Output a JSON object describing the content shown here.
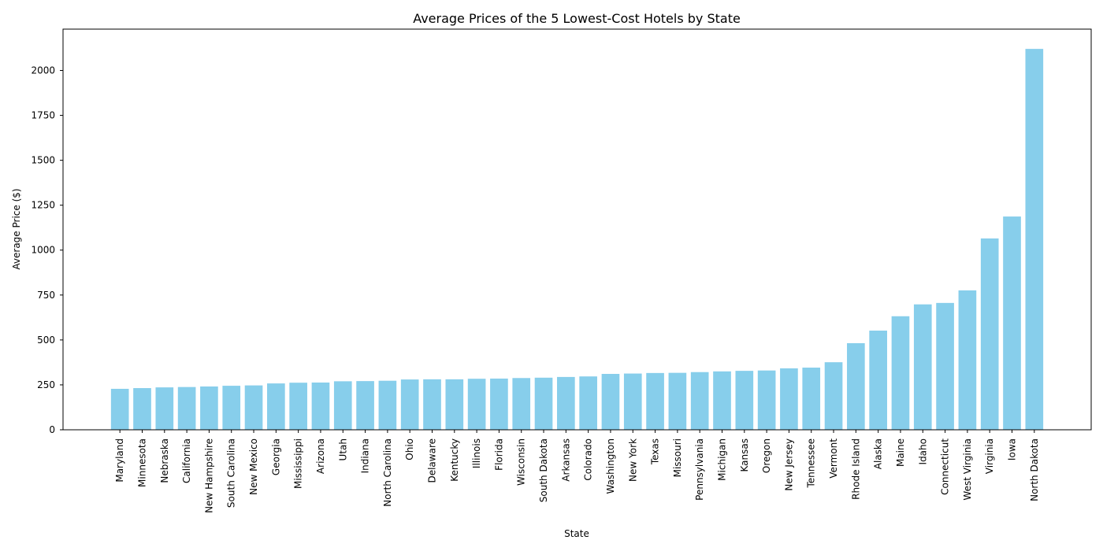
{
  "chart_data": {
    "type": "bar",
    "title": "Average Prices of the 5 Lowest-Cost Hotels by State",
    "xlabel": "State",
    "ylabel": "Average Price ($)",
    "ylim": [
      0,
      2230
    ],
    "yticks": [
      0,
      250,
      500,
      750,
      1000,
      1250,
      1500,
      1750,
      2000
    ],
    "grid": false,
    "bar_color": "#87ceeb",
    "categories": [
      "Maryland",
      "Minnesota",
      "Nebraska",
      "California",
      "New Hampshire",
      "South Carolina",
      "New Mexico",
      "Georgia",
      "Mississippi",
      "Arizona",
      "Utah",
      "Indiana",
      "North Carolina",
      "Ohio",
      "Delaware",
      "Kentucky",
      "Illinois",
      "Florida",
      "Wisconsin",
      "South Dakota",
      "Arkansas",
      "Colorado",
      "Washington",
      "New York",
      "Texas",
      "Missouri",
      "Pennsylvania",
      "Michigan",
      "Kansas",
      "Oregon",
      "New Jersey",
      "Tennessee",
      "Vermont",
      "Rhode Island",
      "Alaska",
      "Maine",
      "Idaho",
      "Connecticut",
      "West Virginia",
      "Virginia",
      "Iowa",
      "North Dakota"
    ],
    "values": [
      228,
      232,
      236,
      238,
      241,
      245,
      247,
      258,
      262,
      263,
      270,
      271,
      273,
      280,
      281,
      281,
      284,
      285,
      288,
      290,
      294,
      297,
      311,
      313,
      316,
      317,
      321,
      325,
      328,
      330,
      342,
      346,
      376,
      482,
      552,
      632,
      698,
      706,
      776,
      1065,
      1187,
      2120
    ]
  }
}
